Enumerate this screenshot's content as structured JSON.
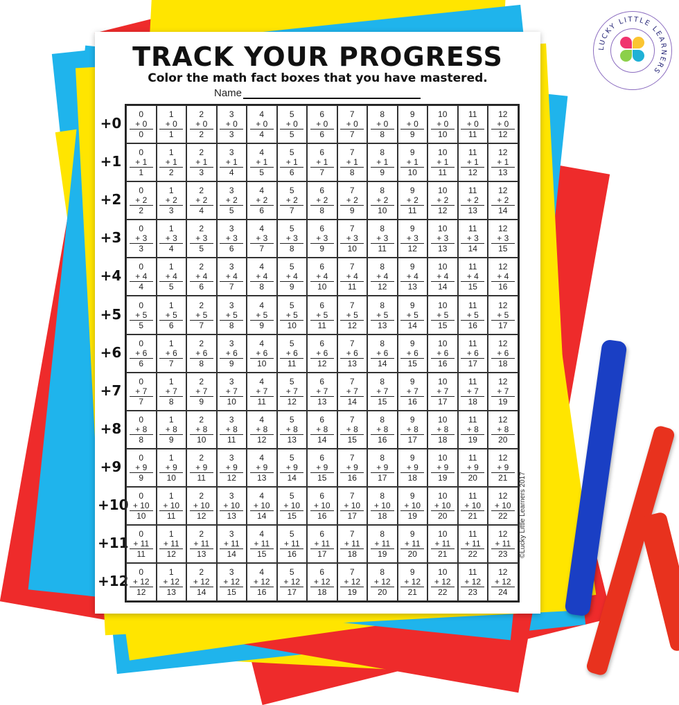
{
  "worksheet": {
    "title": "TRACK YOUR PROGRESS",
    "subtitle": "Color the math fact boxes that you have mastered.",
    "name_label": "Name",
    "copyright": "©Lucky Little Learners 2017",
    "columns": [
      "0",
      "1",
      "2",
      "3",
      "4",
      "5",
      "6",
      "7",
      "8",
      "9",
      "10",
      "11",
      "12"
    ],
    "rows": [
      {
        "label": "+0",
        "addend": "+ 0",
        "sums": [
          "0",
          "1",
          "2",
          "3",
          "4",
          "5",
          "6",
          "7",
          "8",
          "9",
          "10",
          "11",
          "12"
        ]
      },
      {
        "label": "+1",
        "addend": "+ 1",
        "sums": [
          "1",
          "2",
          "3",
          "4",
          "5",
          "6",
          "7",
          "8",
          "9",
          "10",
          "11",
          "12",
          "13"
        ]
      },
      {
        "label": "+2",
        "addend": "+ 2",
        "sums": [
          "2",
          "3",
          "4",
          "5",
          "6",
          "7",
          "8",
          "9",
          "10",
          "11",
          "12",
          "13",
          "14"
        ]
      },
      {
        "label": "+3",
        "addend": "+ 3",
        "sums": [
          "3",
          "4",
          "5",
          "6",
          "7",
          "8",
          "9",
          "10",
          "11",
          "12",
          "13",
          "14",
          "15"
        ]
      },
      {
        "label": "+4",
        "addend": "+ 4",
        "sums": [
          "4",
          "5",
          "6",
          "7",
          "8",
          "9",
          "10",
          "11",
          "12",
          "13",
          "14",
          "15",
          "16"
        ]
      },
      {
        "label": "+5",
        "addend": "+ 5",
        "sums": [
          "5",
          "6",
          "7",
          "8",
          "9",
          "10",
          "11",
          "12",
          "13",
          "14",
          "15",
          "16",
          "17"
        ]
      },
      {
        "label": "+6",
        "addend": "+ 6",
        "sums": [
          "6",
          "7",
          "8",
          "9",
          "10",
          "11",
          "12",
          "13",
          "14",
          "15",
          "16",
          "17",
          "18"
        ]
      },
      {
        "label": "+7",
        "addend": "+ 7",
        "sums": [
          "7",
          "8",
          "9",
          "10",
          "11",
          "12",
          "13",
          "14",
          "15",
          "16",
          "17",
          "18",
          "19"
        ]
      },
      {
        "label": "+8",
        "addend": "+ 8",
        "sums": [
          "8",
          "9",
          "10",
          "11",
          "12",
          "13",
          "14",
          "15",
          "16",
          "17",
          "18",
          "19",
          "20"
        ]
      },
      {
        "label": "+9",
        "addend": "+ 9",
        "sums": [
          "9",
          "10",
          "11",
          "12",
          "13",
          "14",
          "15",
          "16",
          "17",
          "18",
          "19",
          "20",
          "21"
        ]
      },
      {
        "label": "+10",
        "addend": "+ 10",
        "sums": [
          "10",
          "11",
          "12",
          "13",
          "14",
          "15",
          "16",
          "17",
          "18",
          "19",
          "20",
          "21",
          "22"
        ]
      },
      {
        "label": "+11",
        "addend": "+ 11",
        "sums": [
          "11",
          "12",
          "13",
          "14",
          "15",
          "16",
          "17",
          "18",
          "19",
          "20",
          "21",
          "22",
          "23"
        ]
      },
      {
        "label": "+12",
        "addend": "+ 12",
        "sums": [
          "12",
          "13",
          "14",
          "15",
          "16",
          "17",
          "18",
          "19",
          "20",
          "21",
          "22",
          "23",
          "24"
        ]
      }
    ]
  },
  "logo": {
    "text": "LUCKY LITTLE LEARNERS",
    "ring_color": "#8a6bbf",
    "heart_colors": [
      "#f0346e",
      "#fbc531",
      "#1fb1d6",
      "#8cd04a"
    ]
  },
  "colors": {
    "yellow": "#ffe500",
    "blue": "#1fb4ec",
    "red": "#ee2b2b",
    "marker_blue": "#1a3fc4",
    "marker_red": "#e8321e"
  }
}
